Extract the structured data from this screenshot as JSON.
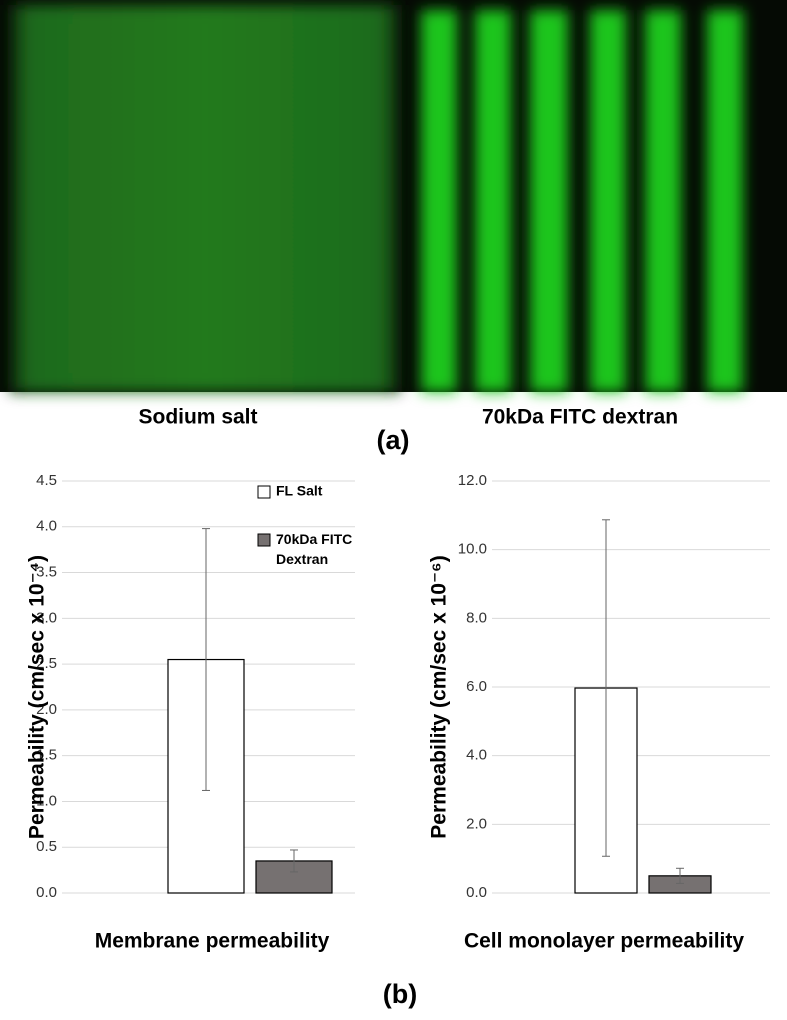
{
  "panel_a": {
    "left_label": "Sodium salt",
    "right_label": "70kDa FITC dextran",
    "label": "(a)"
  },
  "panel_b": {
    "label": "(b)"
  },
  "chart_data": [
    {
      "type": "bar",
      "title": "Membrane permeability",
      "y_label": "Permeability (cm/sec x 10⁻⁴)",
      "categories": [
        null
      ],
      "series": [
        {
          "name": "FL Salt",
          "color": "#ffffff",
          "values": [
            2.55
          ],
          "errors": [
            1.43
          ]
        },
        {
          "name": "70kDa FITC Dextran",
          "color": "#767171",
          "values": [
            0.35
          ],
          "errors": [
            0.12
          ]
        }
      ],
      "ylim": [
        0,
        4.5
      ],
      "yticks": [
        {
          "value": 0,
          "label": "0.0"
        },
        {
          "value": 0.5,
          "label": "0.5"
        },
        {
          "value": 1,
          "label": "1.0"
        },
        {
          "value": 1.5,
          "label": "1.5"
        },
        {
          "value": 2,
          "label": "2.0"
        },
        {
          "value": 2.5,
          "label": "2.5"
        },
        {
          "value": 3,
          "label": "3.0"
        },
        {
          "value": 3.5,
          "label": "3.5"
        },
        {
          "value": 4,
          "label": "4.0"
        },
        {
          "value": 4.5,
          "label": "4.5"
        }
      ],
      "grid": true,
      "legend": "top-right"
    },
    {
      "type": "bar",
      "title": "Cell monolayer permeability",
      "y_label": "Permeability (cm/sec x 10⁻⁶)",
      "categories": [
        null
      ],
      "series": [
        {
          "color": "#ffffff",
          "values": [
            5.97
          ],
          "errors": [
            4.9
          ]
        },
        {
          "color": "#767171",
          "values": [
            0.5
          ],
          "errors": [
            0.22
          ]
        }
      ],
      "ylim": [
        0,
        12
      ],
      "yticks": [
        {
          "value": 0,
          "label": "0.0"
        },
        {
          "value": 2,
          "label": "2.0"
        },
        {
          "value": 4,
          "label": "4.0"
        },
        {
          "value": 6,
          "label": "6.0"
        },
        {
          "value": 8,
          "label": "8.0"
        },
        {
          "value": 10,
          "label": "10.0"
        },
        {
          "value": 12,
          "label": "12.0"
        }
      ],
      "grid": true,
      "legend": false
    }
  ]
}
